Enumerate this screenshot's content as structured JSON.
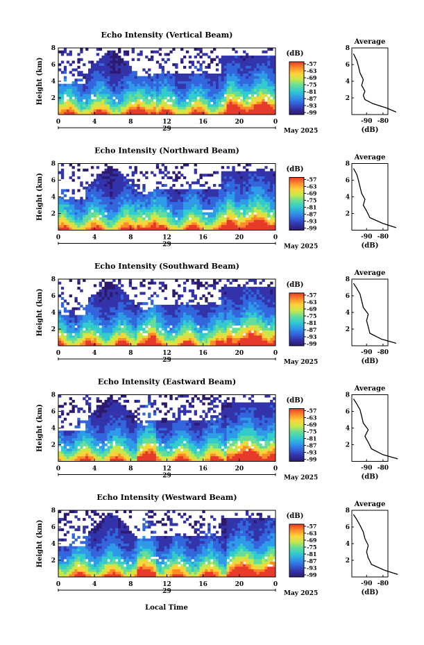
{
  "figure": {
    "xlabel": "Local Time",
    "colorbar_unit": "(dB)",
    "colorbar_ticks": [
      "-57",
      "-63",
      "-69",
      "-75",
      "-81",
      "-87",
      "-93",
      "-99"
    ],
    "day_label": "29",
    "month_label": "May 2025",
    "xticks": [
      "0",
      "4",
      "8",
      "12",
      "16",
      "20",
      "0"
    ],
    "yticks": [
      "2",
      "4",
      "6",
      "8"
    ],
    "ylabel": "Height (km)",
    "avg_title": "Average",
    "avg_xlabel": "(dB)",
    "avg_xticks": [
      "-90",
      "-80"
    ]
  },
  "chart_data": [
    {
      "type": "heatmap",
      "title": "Echo Intensity (Vertical Beam)",
      "xlabel": "Local Time",
      "ylabel": "Height (km)",
      "x_range_hours": [
        0,
        24
      ],
      "ylim": [
        0,
        8
      ],
      "zlim": [
        -99,
        -57
      ],
      "zunit": "dB",
      "profile": [
        [
          -72,
          0.3
        ],
        [
          -78,
          0.8
        ],
        [
          -86,
          1.3
        ],
        [
          -91,
          1.8
        ],
        [
          -92,
          2.3
        ],
        [
          -91,
          2.8
        ],
        [
          -93,
          3.5
        ],
        [
          -92,
          4.2
        ],
        [
          -94,
          5.0
        ],
        [
          -95,
          5.8
        ],
        [
          -96,
          6.5
        ],
        [
          -98,
          7.3
        ]
      ]
    },
    {
      "type": "heatmap",
      "title": "Echo Intensity (Northward Beam)",
      "xlabel": "Local Time",
      "ylabel": "Height (km)",
      "x_range_hours": [
        0,
        24
      ],
      "ylim": [
        0,
        8
      ],
      "zlim": [
        -99,
        -57
      ],
      "zunit": "dB",
      "profile": [
        [
          -72,
          0.3
        ],
        [
          -80,
          0.8
        ],
        [
          -88,
          1.5
        ],
        [
          -90,
          2.3
        ],
        [
          -92,
          3.0
        ],
        [
          -91,
          3.7
        ],
        [
          -93,
          4.4
        ],
        [
          -94,
          5.2
        ],
        [
          -95,
          6.0
        ],
        [
          -96,
          6.7
        ],
        [
          -98,
          7.4
        ]
      ]
    },
    {
      "type": "heatmap",
      "title": "Echo Intensity (Southward Beam)",
      "xlabel": "Local Time",
      "ylabel": "Height (km)",
      "x_range_hours": [
        0,
        24
      ],
      "ylim": [
        0,
        8
      ],
      "zlim": [
        -99,
        -57
      ],
      "zunit": "dB",
      "profile": [
        [
          -72,
          0.3
        ],
        [
          -81,
          0.8
        ],
        [
          -88,
          1.5
        ],
        [
          -89,
          2.3
        ],
        [
          -90,
          3.0
        ],
        [
          -89,
          3.8
        ],
        [
          -92,
          4.6
        ],
        [
          -93,
          5.4
        ],
        [
          -94,
          6.2
        ],
        [
          -96,
          6.9
        ],
        [
          -98,
          7.5
        ]
      ]
    },
    {
      "type": "heatmap",
      "title": "Echo Intensity (Eastward Beam)",
      "xlabel": "Local Time",
      "ylabel": "Height (km)",
      "x_range_hours": [
        0,
        24
      ],
      "ylim": [
        0,
        8
      ],
      "zlim": [
        -99,
        -57
      ],
      "zunit": "dB",
      "profile": [
        [
          -71,
          0.3
        ],
        [
          -80,
          0.8
        ],
        [
          -87,
          1.5
        ],
        [
          -89,
          2.3
        ],
        [
          -91,
          3.0
        ],
        [
          -89,
          3.8
        ],
        [
          -92,
          4.6
        ],
        [
          -93,
          5.4
        ],
        [
          -94,
          6.2
        ],
        [
          -96,
          6.9
        ],
        [
          -98,
          7.5
        ]
      ]
    },
    {
      "type": "heatmap",
      "title": "Echo Intensity (Westward Beam)",
      "xlabel": "Local Time",
      "ylabel": "Height (km)",
      "x_range_hours": [
        0,
        24
      ],
      "ylim": [
        0,
        8
      ],
      "zlim": [
        -99,
        -57
      ],
      "zunit": "dB",
      "profile": [
        [
          -71,
          0.3
        ],
        [
          -79,
          0.8
        ],
        [
          -87,
          1.5
        ],
        [
          -89,
          2.3
        ],
        [
          -90,
          3.0
        ],
        [
          -89,
          3.8
        ],
        [
          -91,
          4.6
        ],
        [
          -92,
          5.4
        ],
        [
          -94,
          6.2
        ],
        [
          -96,
          6.9
        ],
        [
          -98,
          7.5
        ]
      ]
    }
  ],
  "colors": [
    "#2d1a6e",
    "#3333aa",
    "#3366dd",
    "#2f9be8",
    "#33cccc",
    "#66dd99",
    "#c8e84a",
    "#ffd23a",
    "#ff8a2a",
    "#e83a2a"
  ]
}
